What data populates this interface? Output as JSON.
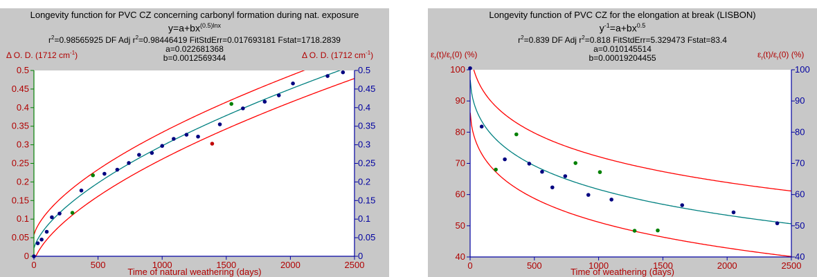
{
  "chart_data": [
    {
      "type": "scatter",
      "title": "Longevity function for PVC CZ concerning carbonyl formation during nat. exposure",
      "equation": "y=a+bx",
      "equation_exponent": "(0.5)lnx",
      "stats": {
        "r2_label": "r",
        "r2_value": "=0.98565925 DF Adj r",
        "adj_value": "=0.98446419 FitStdErr=0.017693181 Fstat=1718.2839"
      },
      "coef_a": "a=0.022681368",
      "coef_b": "b=0.0012569344",
      "ylabel_left": "Δ O. D. (1712 cm",
      "ylabel_right": "Δ O. D. (1712 cm",
      "ylabel_unit_exp": "-1",
      "ylabel_close": ")",
      "xlabel": "Time of natural weathering (days)",
      "xlim": [
        0,
        2500
      ],
      "ylim": [
        0,
        0.5
      ],
      "xticks": [
        0,
        500,
        1000,
        1500,
        2000,
        2500
      ],
      "yticks": [
        0,
        0.05,
        0.1,
        0.15,
        0.2,
        0.25,
        0.3,
        0.35,
        0.4,
        0.45,
        0.5
      ],
      "ytick_labels_left": [
        "0",
        "0.05",
        "0.1",
        "0.15",
        "0.2",
        "0.25",
        "0.3",
        "0.35",
        "0.4",
        "0.45",
        "0.5"
      ],
      "ytick_labels_right": [
        "0",
        "0.05",
        "0.1",
        "0.15",
        "0.2",
        "0.25",
        "0.3",
        "0.35",
        "0.4",
        "0.45",
        "0.5"
      ],
      "model": "a+b*sqrt(x)*ln(x)",
      "a": 0.022681368,
      "b": 0.0012569344,
      "band_offset": 0.036,
      "series": [
        {
          "role": "fitted",
          "color": "#000080",
          "points": [
            [
              0,
              0
            ],
            [
              30,
              0.035
            ],
            [
              60,
              0.045
            ],
            [
              100,
              0.066
            ],
            [
              140,
              0.105
            ],
            [
              200,
              0.115
            ],
            [
              370,
              0.177
            ],
            [
              550,
              0.222
            ],
            [
              650,
              0.233
            ],
            [
              740,
              0.251
            ],
            [
              820,
              0.273
            ],
            [
              920,
              0.278
            ],
            [
              1000,
              0.297
            ],
            [
              1090,
              0.316
            ],
            [
              1190,
              0.327
            ],
            [
              1280,
              0.322
            ],
            [
              1450,
              0.355
            ],
            [
              1630,
              0.398
            ],
            [
              1800,
              0.416
            ],
            [
              1910,
              0.433
            ],
            [
              2020,
              0.465
            ],
            [
              2290,
              0.485
            ],
            [
              2410,
              0.495
            ]
          ]
        },
        {
          "role": "outlier",
          "color": "#008000",
          "points": [
            [
              300,
              0.117
            ],
            [
              460,
              0.218
            ],
            [
              1540,
              0.41
            ]
          ]
        },
        {
          "role": "outlier",
          "color": "#c00000",
          "points": [
            [
              1390,
              0.303
            ]
          ]
        }
      ],
      "colors": {
        "fit": "#008080",
        "band": "#ff0000",
        "left_axis": "#008000",
        "right_axis": "#0000a0",
        "labels": "#b00000"
      }
    },
    {
      "type": "scatter",
      "title": "Longevity function of PVC CZ for the elongation at break (LISBON)",
      "equation": "y",
      "equation_exponent_y": "-1",
      "equation_rest": "=a+bx",
      "equation_exponent": "0.5",
      "stats": {
        "r2_label": "r",
        "r2_value": "=0.839 DF Adj r",
        "adj_value": "=0.818 FitStdErr=5.329473 Fstat=83.4"
      },
      "coef_a": "a=0.010145514",
      "coef_b": "b=0.00019204455",
      "ylabel_left": "ε",
      "ylabel_right": "ε",
      "ylabel_sub": "r",
      "ylabel_mid": "(t)/ε",
      "ylabel_tail": "(0) (%)",
      "xlabel": "Time of weathering (days)",
      "xlim": [
        0,
        2500
      ],
      "ylim": [
        40,
        100
      ],
      "xticks": [
        0,
        500,
        1000,
        1500,
        2000,
        2500
      ],
      "yticks": [
        40,
        50,
        60,
        70,
        80,
        90,
        100
      ],
      "ytick_labels_left": [
        "40",
        "50",
        "60",
        "70",
        "80",
        "90",
        "100"
      ],
      "ytick_labels_right": [
        "40",
        "50",
        "60",
        "70",
        "80",
        "90",
        "100"
      ],
      "model": "1/(a+b*sqrt(x))",
      "a": 0.010145514,
      "b": 0.00019204455,
      "band_offset": 10.5,
      "series": [
        {
          "role": "fitted",
          "color": "#000080",
          "points": [
            [
              0,
              100.5
            ],
            [
              90,
              81.8
            ],
            [
              270,
              71.3
            ],
            [
              460,
              69.9
            ],
            [
              560,
              67.3
            ],
            [
              640,
              62.3
            ],
            [
              740,
              65.9
            ],
            [
              920,
              59.9
            ],
            [
              1100,
              58.4
            ],
            [
              1650,
              56.6
            ],
            [
              2050,
              54.3
            ],
            [
              2390,
              50.8
            ]
          ]
        },
        {
          "role": "outlier",
          "color": "#008000",
          "points": [
            [
              200,
              68.0
            ],
            [
              360,
              79.3
            ],
            [
              820,
              70.1
            ],
            [
              1010,
              67.2
            ],
            [
              1280,
              48.4
            ],
            [
              1460,
              48.5
            ]
          ]
        }
      ],
      "colors": {
        "fit": "#008080",
        "band": "#ff0000",
        "left_axis": "#0000a0",
        "right_axis": "#0000a0",
        "labels": "#b00000"
      }
    }
  ]
}
